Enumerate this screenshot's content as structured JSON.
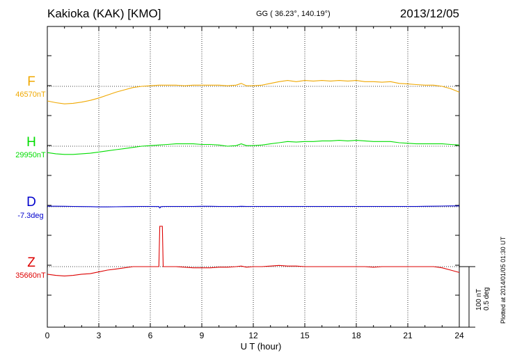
{
  "header": {
    "station": "Kakioka (KAK)  [KMO]",
    "coords": "GG ( 36.23°, 140.19°)",
    "date": "2013/12/05"
  },
  "plotted_note": "Plotted at 2014/01/05 01:30 UT",
  "scale": {
    "nt": "100 nT",
    "deg": "0.5 deg"
  },
  "components": {
    "F": {
      "label": "F",
      "base": "46570nT",
      "color": "#f0a800"
    },
    "H": {
      "label": "H",
      "base": "29950nT",
      "color": "#00dd00"
    },
    "D": {
      "label": "D",
      "base": "-7.3deg",
      "color": "#0000cc"
    },
    "Z": {
      "label": "Z",
      "base": "35660nT",
      "color": "#dd0000"
    }
  },
  "chart_data": {
    "type": "line",
    "xlabel": "U T (hour)",
    "xlim": [
      0,
      24
    ],
    "xticks": [
      0,
      3,
      6,
      9,
      12,
      15,
      18,
      21,
      24
    ],
    "grid": true,
    "series": [
      {
        "name": "F",
        "color": "#f0a800",
        "x": [
          0,
          0.5,
          1,
          1.5,
          2,
          2.5,
          3,
          3.5,
          4,
          4.5,
          5,
          5.5,
          6,
          6.5,
          7,
          7.5,
          8,
          8.5,
          9,
          9.5,
          10,
          10.5,
          11,
          11.3,
          11.6,
          12,
          12.5,
          13,
          13.5,
          14,
          14.5,
          15,
          15.5,
          16,
          16.5,
          17,
          17.5,
          18,
          18.5,
          19,
          19.5,
          20,
          20.5,
          21,
          21.5,
          22,
          22.5,
          23,
          23.5,
          24
        ],
        "y": [
          46545,
          46542,
          46540,
          46541,
          46543,
          46546,
          46550,
          46555,
          46560,
          46564,
          46568,
          46570,
          46571,
          46572,
          46572,
          46572,
          46571,
          46572,
          46572,
          46572,
          46572,
          46571,
          46572,
          46575,
          46571,
          46571,
          46572,
          46575,
          46578,
          46580,
          46578,
          46580,
          46579,
          46580,
          46579,
          46580,
          46579,
          46580,
          46578,
          46578,
          46577,
          46578,
          46575,
          46574,
          46573,
          46572,
          46572,
          46570,
          46566,
          46560
        ]
      },
      {
        "name": "H",
        "color": "#00dd00",
        "x": [
          0,
          0.5,
          1,
          1.5,
          2,
          2.5,
          3,
          3.5,
          4,
          4.5,
          5,
          5.5,
          6,
          6.5,
          7,
          7.5,
          8,
          8.5,
          9,
          9.5,
          10,
          10.5,
          11,
          11.3,
          11.6,
          12,
          12.5,
          13,
          13.5,
          14,
          14.5,
          15,
          15.5,
          16,
          16.5,
          17,
          17.5,
          18,
          18.5,
          19,
          19.5,
          20,
          20.5,
          21,
          21.5,
          22,
          22.5,
          23,
          23.5,
          24
        ],
        "y": [
          29939,
          29937,
          29936,
          29936,
          29937,
          29938,
          29940,
          29942,
          29944,
          29946,
          29948,
          29950,
          29951,
          29952,
          29953,
          29954,
          29954,
          29954,
          29953,
          29953,
          29952,
          29950,
          29951,
          29954,
          29951,
          29951,
          29952,
          29954,
          29956,
          29958,
          29957,
          29958,
          29958,
          29959,
          29959,
          29960,
          29959,
          29960,
          29959,
          29958,
          29958,
          29958,
          29956,
          29955,
          29954,
          29954,
          29954,
          29954,
          29953,
          29952
        ]
      },
      {
        "name": "D",
        "color": "#0000cc",
        "x": [
          0,
          0.5,
          1,
          1.5,
          2,
          2.5,
          3,
          3.5,
          4,
          4.5,
          5,
          5.5,
          6,
          6.5,
          6.55,
          6.6,
          6.65,
          7,
          7.5,
          8,
          8.5,
          9,
          9.5,
          10,
          10.5,
          11,
          11.3,
          11.6,
          12,
          12.5,
          13,
          13.5,
          14,
          14.5,
          15,
          15.5,
          16,
          16.5,
          17,
          17.5,
          18,
          18.5,
          19,
          19.5,
          20,
          20.5,
          21,
          21.5,
          22,
          22.5,
          23,
          23.5,
          24
        ],
        "y": [
          -7.295,
          -7.295,
          -7.296,
          -7.297,
          -7.298,
          -7.299,
          -7.301,
          -7.301,
          -7.3,
          -7.299,
          -7.298,
          -7.297,
          -7.297,
          -7.298,
          -7.31,
          -7.303,
          -7.298,
          -7.297,
          -7.297,
          -7.297,
          -7.297,
          -7.296,
          -7.296,
          -7.297,
          -7.297,
          -7.298,
          -7.296,
          -7.297,
          -7.297,
          -7.297,
          -7.297,
          -7.297,
          -7.297,
          -7.297,
          -7.297,
          -7.297,
          -7.297,
          -7.297,
          -7.297,
          -7.297,
          -7.297,
          -7.297,
          -7.297,
          -7.297,
          -7.297,
          -7.297,
          -7.297,
          -7.297,
          -7.296,
          -7.295,
          -7.294,
          -7.293,
          -7.293
        ]
      },
      {
        "name": "Z",
        "color": "#dd0000",
        "x": [
          0,
          0.5,
          1,
          1.5,
          2,
          2.5,
          3,
          3.5,
          4,
          4.5,
          5,
          5.5,
          6,
          6.5,
          6.55,
          6.7,
          6.75,
          7,
          7.5,
          8,
          8.5,
          9,
          9.5,
          10,
          10.5,
          11,
          11.3,
          11.6,
          12,
          12.5,
          13,
          13.5,
          14,
          14.5,
          15,
          15.5,
          16,
          16.5,
          17,
          17.5,
          18,
          18.5,
          19,
          19.5,
          20,
          20.5,
          21,
          21.5,
          22,
          22.5,
          23,
          23.5,
          24
        ],
        "y": [
          35647,
          35645,
          35644,
          35645,
          35647,
          35648,
          35651,
          35654,
          35656,
          35658,
          35660,
          35660,
          35660,
          35660,
          35729,
          35729,
          35660,
          35660,
          35660,
          35659,
          35658,
          35658,
          35658,
          35659,
          35659,
          35660,
          35661,
          35659,
          35660,
          35660,
          35661,
          35662,
          35661,
          35661,
          35660,
          35660,
          35660,
          35660,
          35660,
          35660,
          35660,
          35660,
          35659,
          35660,
          35660,
          35660,
          35660,
          35660,
          35660,
          35660,
          35658,
          35654,
          35650
        ]
      }
    ]
  }
}
